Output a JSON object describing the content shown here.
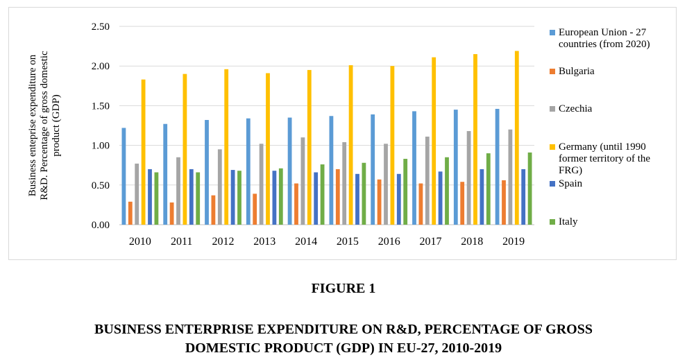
{
  "figure": {
    "number": "FIGURE 1",
    "caption_lines": [
      "BUSINESS ENTERPRISE EXPENDITURE ON R&D, PERCENTAGE OF GROSS",
      "DOMESTIC PRODUCT (GDP) IN EU-27, 2010-2019"
    ]
  },
  "chart_data": {
    "type": "bar",
    "ylabel_lines": [
      "Business enteprise expenditure on",
      "R&D. Percentage of gross domestic",
      "product (GDP)"
    ],
    "xlabel": "",
    "ylim": [
      0,
      2.5
    ],
    "ytick_labels": [
      "0.00",
      "0.50",
      "1.00",
      "1.50",
      "2.00",
      "2.50"
    ],
    "ytick_values": [
      0,
      0.5,
      1.0,
      1.5,
      2.0,
      2.5
    ],
    "grid": true,
    "legend_position": "right",
    "categories": [
      "2010",
      "2011",
      "2012",
      "2013",
      "2014",
      "2015",
      "2016",
      "2017",
      "2018",
      "2019"
    ],
    "series": [
      {
        "name": "European Union - 27 countries (from 2020)",
        "legend_lines": [
          "European Union - 27",
          "countries (from 2020)"
        ],
        "color": "#5b9bd5",
        "values": [
          1.22,
          1.27,
          1.32,
          1.34,
          1.35,
          1.37,
          1.39,
          1.43,
          1.45,
          1.46
        ]
      },
      {
        "name": "Bulgaria",
        "legend_lines": [
          "Bulgaria"
        ],
        "color": "#ed7d31",
        "values": [
          0.29,
          0.28,
          0.37,
          0.39,
          0.52,
          0.7,
          0.57,
          0.52,
          0.54,
          0.56
        ]
      },
      {
        "name": "Czechia",
        "legend_lines": [
          "Czechia"
        ],
        "color": "#a5a5a5",
        "values": [
          0.77,
          0.85,
          0.95,
          1.02,
          1.1,
          1.04,
          1.02,
          1.11,
          1.18,
          1.2
        ]
      },
      {
        "name": "Germany (until 1990 former territory of the FRG)",
        "legend_lines": [
          "Germany (until 1990",
          "former territory of the",
          "FRG)"
        ],
        "color": "#ffc000",
        "values": [
          1.83,
          1.9,
          1.96,
          1.91,
          1.95,
          2.01,
          2.0,
          2.11,
          2.15,
          2.19
        ]
      },
      {
        "name": "Spain",
        "legend_lines": [
          "Spain"
        ],
        "color": "#4472c4",
        "values": [
          0.7,
          0.7,
          0.69,
          0.68,
          0.66,
          0.64,
          0.64,
          0.67,
          0.7,
          0.7
        ]
      },
      {
        "name": "Italy",
        "legend_lines": [
          "Italy"
        ],
        "color": "#70ad47",
        "values": [
          0.66,
          0.66,
          0.68,
          0.71,
          0.76,
          0.78,
          0.83,
          0.85,
          0.9,
          0.91
        ]
      }
    ]
  }
}
